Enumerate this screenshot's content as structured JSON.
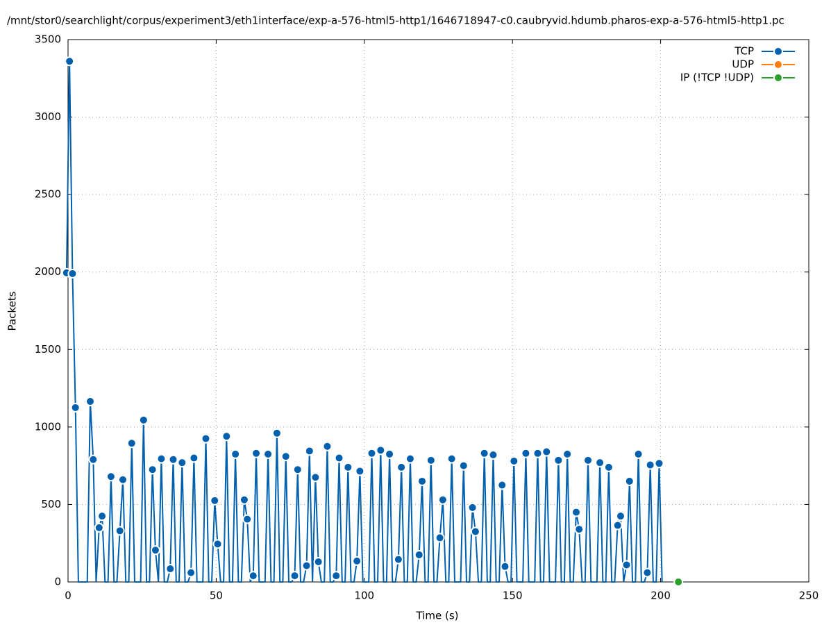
{
  "chart_data": {
    "type": "line",
    "title": "/mnt/stor0/searchlight/corpus/experiment3/eth1interface/exp-a-576-html5-http1/1646718947-c0.caubryvid.hdumb.pharos-exp-a-576-html5-http1.pc",
    "xlabel": "Time (s)",
    "ylabel": "Packets",
    "xlim": [
      0,
      250
    ],
    "xticks": [
      0,
      50,
      100,
      150,
      200,
      250
    ],
    "ylim": [
      0,
      3500
    ],
    "yticks": [
      0,
      500,
      1000,
      1500,
      2000,
      2500,
      3000,
      3500
    ],
    "grid": true,
    "legend": "upper right",
    "series": [
      {
        "name": "TCP",
        "color": "#0060ad",
        "x": [
          -0.5,
          0.5,
          1.5,
          2.5,
          3.5,
          6.5,
          7.5,
          8.5,
          9.5,
          10.5,
          11.5,
          12.5,
          13.5,
          14.5,
          15.5,
          16.5,
          17.5,
          18.5,
          19.5,
          20.5,
          21.5,
          22.5,
          24.5,
          25.5,
          26.5,
          27.5,
          28.5,
          29.5,
          30.5,
          31.5,
          32.5,
          33.5,
          34.5,
          35.5,
          36.5,
          37.5,
          38.5,
          39.5,
          40.5,
          41.5,
          42.5,
          43.5,
          45.5,
          46.5,
          47.5,
          48.5,
          49.5,
          50.5,
          51.5,
          52.5,
          53.5,
          54.5,
          55.5,
          56.5,
          57.5,
          58.5,
          59.5,
          60.5,
          61.5,
          62.5,
          63.5,
          64.5,
          66.5,
          67.5,
          68.5,
          69.5,
          70.5,
          71.5,
          72.5,
          73.5,
          74.5,
          75.5,
          76.5,
          77.5,
          78.5,
          79.5,
          80.5,
          81.5,
          82.5,
          83.5,
          84.5,
          85.5,
          86.5,
          87.5,
          88.5,
          89.5,
          90.5,
          91.5,
          92.5,
          93.5,
          94.5,
          95.5,
          96.5,
          97.5,
          98.5,
          99.5,
          101.5,
          102.5,
          103.5,
          104.5,
          105.5,
          106.5,
          107.5,
          108.5,
          109.5,
          110.5,
          111.5,
          112.5,
          113.5,
          114.5,
          115.5,
          116.5,
          117.5,
          118.5,
          119.5,
          120.5,
          121.5,
          122.5,
          123.5,
          124.5,
          125.5,
          126.5,
          127.5,
          128.5,
          129.5,
          130.5,
          132.5,
          133.5,
          134.5,
          135.5,
          136.5,
          137.5,
          138.5,
          139.5,
          140.5,
          141.5,
          142.5,
          143.5,
          144.5,
          145.5,
          146.5,
          147.5,
          148.5,
          149.5,
          150.5,
          151.5,
          153.5,
          154.5,
          155.5,
          157.5,
          158.5,
          159.5,
          160.5,
          161.5,
          162.5,
          164.5,
          165.5,
          166.5,
          167.5,
          168.5,
          169.5,
          170.5,
          171.5,
          172.5,
          173.5,
          174.5,
          175.5,
          176.5,
          178.5,
          179.5,
          180.5,
          181.5,
          182.5,
          183.5,
          184.5,
          185.5,
          186.5,
          187.5,
          188.5,
          189.5,
          190.5,
          191.5,
          192.5,
          193.5,
          194.5,
          195.5,
          196.5,
          197.5,
          198.5,
          199.5,
          200.5
        ],
        "values": [
          1995,
          3360,
          1990,
          1125,
          0,
          0,
          1165,
          790,
          0,
          350,
          425,
          0,
          0,
          680,
          0,
          0,
          330,
          660,
          0,
          0,
          895,
          0,
          0,
          1045,
          0,
          0,
          725,
          205,
          0,
          795,
          0,
          0,
          85,
          790,
          0,
          0,
          770,
          0,
          0,
          60,
          800,
          0,
          0,
          925,
          0,
          0,
          525,
          245,
          0,
          0,
          940,
          0,
          0,
          825,
          0,
          0,
          530,
          405,
          0,
          40,
          830,
          0,
          0,
          825,
          0,
          0,
          960,
          0,
          0,
          810,
          0,
          0,
          40,
          725,
          0,
          0,
          105,
          845,
          0,
          675,
          130,
          0,
          0,
          875,
          0,
          0,
          40,
          800,
          0,
          0,
          740,
          0,
          0,
          135,
          715,
          0,
          0,
          830,
          0,
          0,
          850,
          0,
          0,
          825,
          0,
          0,
          145,
          740,
          0,
          0,
          795,
          0,
          0,
          175,
          650,
          0,
          0,
          785,
          0,
          0,
          285,
          530,
          0,
          0,
          795,
          0,
          0,
          750,
          0,
          0,
          480,
          325,
          0,
          0,
          830,
          0,
          0,
          820,
          0,
          0,
          625,
          100,
          0,
          0,
          780,
          0,
          0,
          830,
          0,
          0,
          830,
          0,
          0,
          840,
          0,
          0,
          785,
          0,
          0,
          825,
          0,
          0,
          450,
          340,
          0,
          0,
          785,
          0,
          0,
          770,
          0,
          0,
          740,
          0,
          0,
          365,
          425,
          0,
          110,
          650,
          0,
          0,
          825,
          0,
          0,
          60,
          755,
          0,
          0,
          765,
          0
        ]
      },
      {
        "name": "UDP",
        "color": "#ff7f0e",
        "x": [],
        "values": []
      },
      {
        "name": "IP (!TCP  !UDP)",
        "color": "#2ca02c",
        "x": [
          206
        ],
        "values": [
          0
        ]
      }
    ]
  }
}
